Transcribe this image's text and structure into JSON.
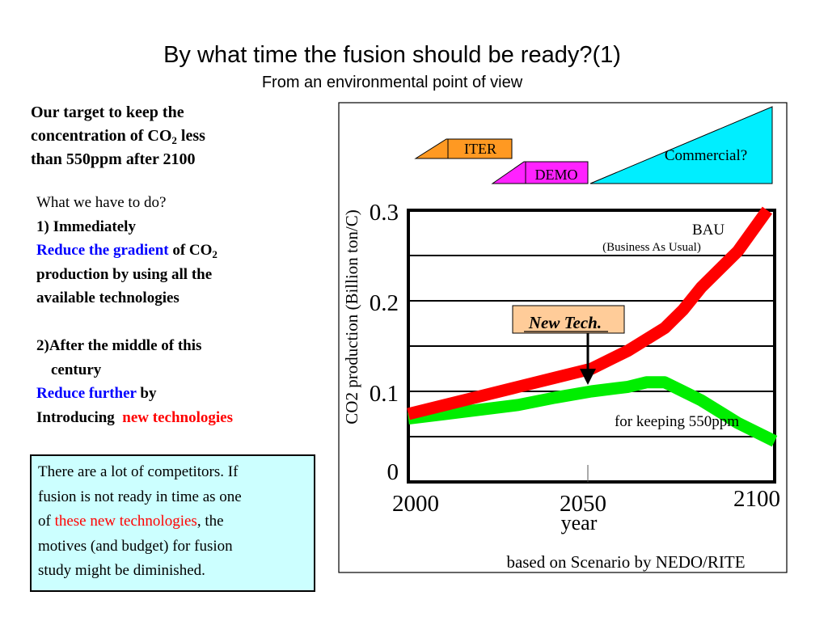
{
  "title": "By what time the fusion should be ready?(1)",
  "subtitle": "From an environmental point of view",
  "target": {
    "line1": "Our target to keep the",
    "line2_pre": "concentration of CO",
    "line2_sub": "2",
    "line2_post": " less",
    "line3": "than 550ppm after 2100"
  },
  "plan": {
    "heading": "What we have to do?",
    "step1": "1) Immediately",
    "reduce_gradient": "Reduce the gradient",
    "of_co": " of CO",
    "co_sub": "2",
    "prod_line1": "production by using all the",
    "prod_line2": "available technologies",
    "step2_line1": "2)After the middle of this",
    "step2_line2": "century",
    "reduce_further": "Reduce further",
    "by": " by",
    "introducing": "Introducing  ",
    "new_tech": "new technologies"
  },
  "note": {
    "line1": "There are a lot of competitors. If",
    "line2": "fusion is not ready in time as one",
    "of": "of ",
    "these_new": "these new technologies",
    "comma_the": ", the",
    "line4": "motives (and budget)  for fusion",
    "line5": "study might be diminished."
  },
  "chart_data": {
    "type": "line",
    "title": "",
    "xlabel": "year",
    "ylabel": "CO2 production (Billion ton/C)",
    "xlim": [
      2000,
      2100
    ],
    "ylim": [
      0,
      0.3
    ],
    "x_ticks": [
      "2000",
      "2050",
      "2100"
    ],
    "y_ticks": [
      "0",
      "0.1",
      "0.2",
      "0.3"
    ],
    "grid": true,
    "series": [
      {
        "name": "BAU",
        "color": "#ff0000",
        "x": [
          2000,
          2010,
          2020,
          2030,
          2040,
          2050,
          2060,
          2070,
          2075,
          2080,
          2090,
          2098
        ],
        "y": [
          0.075,
          0.085,
          0.095,
          0.105,
          0.115,
          0.125,
          0.145,
          0.17,
          0.19,
          0.215,
          0.255,
          0.3
        ]
      },
      {
        "name": "for keeping 550ppm",
        "color": "#00ee00",
        "x": [
          2000,
          2010,
          2020,
          2030,
          2040,
          2050,
          2060,
          2065,
          2070,
          2075,
          2080,
          2090,
          2100
        ],
        "y": [
          0.07,
          0.075,
          0.08,
          0.085,
          0.093,
          0.1,
          0.105,
          0.11,
          0.11,
          0.1,
          0.09,
          0.065,
          0.045
        ]
      }
    ],
    "annotations": {
      "bau_label": "BAU",
      "bau_sub": "(Business As Usual)",
      "green_label": "for keeping 550ppm",
      "new_tech": "New Tech.",
      "source": "based on  Scenario by NEDO/RITE"
    },
    "phases": [
      {
        "label": "ITER",
        "color": "#ff9922"
      },
      {
        "label": "DEMO",
        "color": "#ff22ff"
      },
      {
        "label": "Commercial?",
        "color": "#00eeff"
      }
    ]
  }
}
